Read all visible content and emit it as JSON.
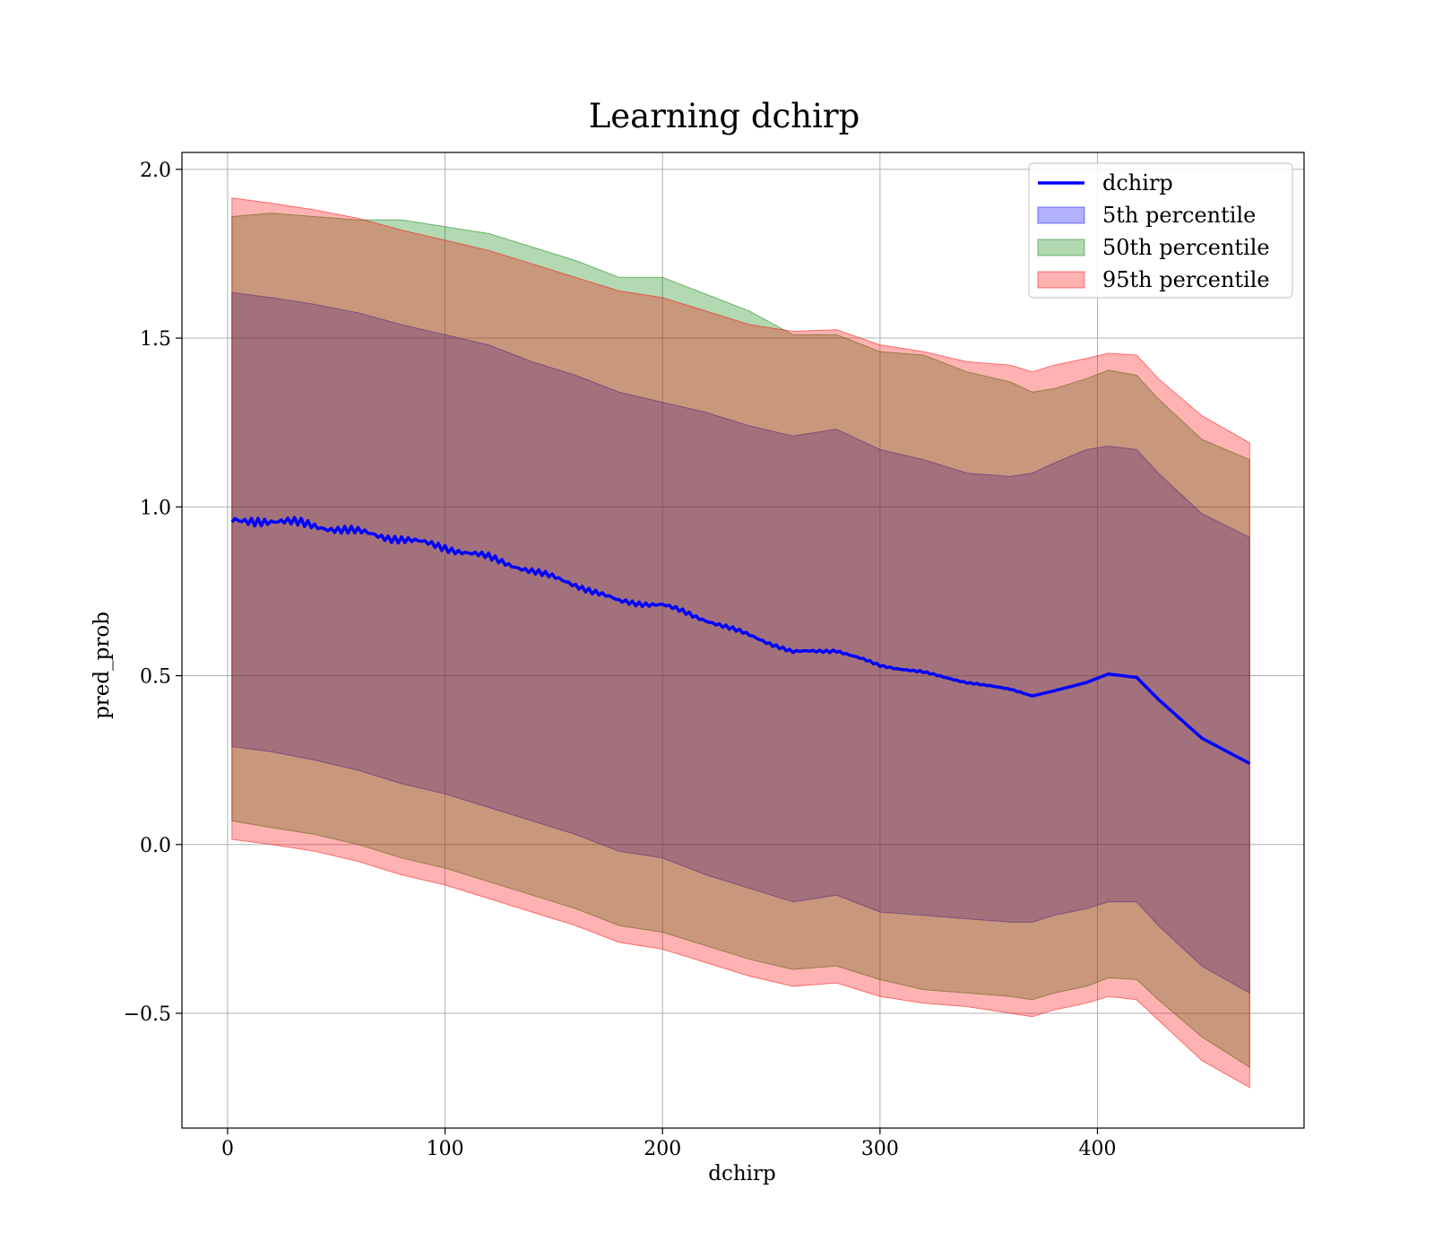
{
  "chart_data": {
    "type": "area",
    "title": "Learning dchirp",
    "xlabel": "dchirp",
    "ylabel": "pred_prob",
    "xlim": [
      -21,
      495
    ],
    "ylim": [
      -0.84,
      2.05
    ],
    "xticks": [
      0,
      100,
      200,
      300,
      400
    ],
    "yticks": [
      -0.5,
      0.0,
      0.5,
      1.0,
      1.5,
      2.0
    ],
    "grid": true,
    "legend_position": "top-right",
    "colors": {
      "line": "#0000ff",
      "band_5": "#0000ff",
      "band_50": "#008000",
      "band_95": "#ff0000",
      "band_alpha": 0.3
    },
    "x": [
      2,
      20,
      40,
      60,
      80,
      100,
      120,
      140,
      160,
      180,
      200,
      220,
      240,
      260,
      280,
      300,
      320,
      340,
      360,
      370,
      380,
      395,
      405,
      418,
      428,
      448,
      470
    ],
    "series": [
      {
        "name": "dchirp",
        "kind": "line",
        "values": [
          0.965,
          0.96,
          0.945,
          0.925,
          0.905,
          0.88,
          0.85,
          0.81,
          0.77,
          0.72,
          0.71,
          0.665,
          0.62,
          0.57,
          0.575,
          0.53,
          0.51,
          0.48,
          0.46,
          0.44,
          0.455,
          0.48,
          0.505,
          0.495,
          0.43,
          0.315,
          0.24
        ]
      },
      {
        "name": "5th percentile",
        "kind": "band",
        "lower": [
          0.29,
          0.275,
          0.25,
          0.22,
          0.18,
          0.15,
          0.11,
          0.07,
          0.03,
          -0.02,
          -0.04,
          -0.09,
          -0.13,
          -0.17,
          -0.15,
          -0.2,
          -0.21,
          -0.22,
          -0.23,
          -0.23,
          -0.21,
          -0.19,
          -0.17,
          -0.17,
          -0.24,
          -0.36,
          -0.44
        ],
        "upper": [
          1.635,
          1.62,
          1.6,
          1.575,
          1.54,
          1.51,
          1.48,
          1.43,
          1.39,
          1.34,
          1.31,
          1.28,
          1.24,
          1.21,
          1.23,
          1.17,
          1.14,
          1.1,
          1.09,
          1.1,
          1.13,
          1.17,
          1.18,
          1.17,
          1.1,
          0.98,
          0.91
        ]
      },
      {
        "name": "50th percentile",
        "kind": "band",
        "lower": [
          0.07,
          0.05,
          0.03,
          0.0,
          -0.04,
          -0.07,
          -0.11,
          -0.15,
          -0.19,
          -0.24,
          -0.26,
          -0.3,
          -0.34,
          -0.37,
          -0.36,
          -0.4,
          -0.43,
          -0.44,
          -0.45,
          -0.46,
          -0.44,
          -0.42,
          -0.395,
          -0.4,
          -0.46,
          -0.57,
          -0.66
        ]
      },
      {
        "name": "95th percentile",
        "kind": "band",
        "lower": [
          0.015,
          0.0,
          -0.02,
          -0.05,
          -0.09,
          -0.12,
          -0.16,
          -0.2,
          -0.24,
          -0.29,
          -0.31,
          -0.35,
          -0.39,
          -0.42,
          -0.41,
          -0.45,
          -0.47,
          -0.48,
          -0.5,
          -0.51,
          -0.49,
          -0.47,
          -0.45,
          -0.46,
          -0.52,
          -0.64,
          -0.72
        ],
        "upper": [
          1.915,
          1.9,
          1.88,
          1.855,
          1.82,
          1.79,
          1.76,
          1.72,
          1.68,
          1.64,
          1.62,
          1.58,
          1.54,
          1.52,
          1.525,
          1.48,
          1.46,
          1.43,
          1.42,
          1.4,
          1.42,
          1.44,
          1.455,
          1.45,
          1.38,
          1.27,
          1.19
        ]
      }
    ]
  }
}
